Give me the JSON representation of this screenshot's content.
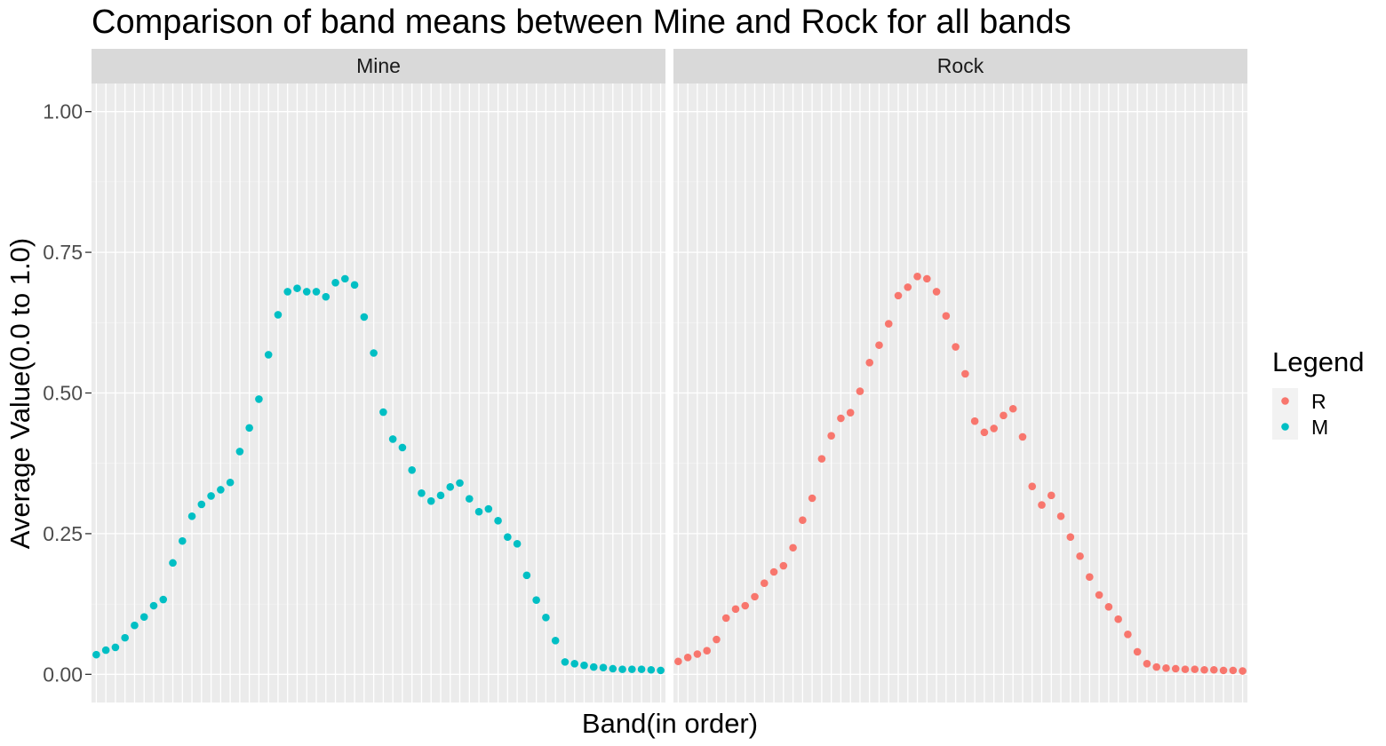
{
  "chart_data": {
    "type": "scatter",
    "title": "Comparison of band means between Mine and Rock for all bands",
    "xlabel": "Band(in order)",
    "ylabel": "Average Value(0.0 to 1.0)",
    "ylim": [
      0,
      1.0
    ],
    "y_ticks": [
      "0.00",
      "0.25",
      "0.50",
      "0.75",
      "1.00"
    ],
    "x_ticks_labeled": false,
    "grid": true,
    "legend": {
      "title": "Legend",
      "position": "right",
      "entries": [
        {
          "label": "R",
          "color": "#F8766D"
        },
        {
          "label": "M",
          "color": "#00BFC4"
        }
      ]
    },
    "facets": [
      {
        "label": "Mine",
        "series": "M",
        "color": "#00BFC4",
        "x": [
          1,
          2,
          3,
          4,
          5,
          6,
          7,
          8,
          9,
          10,
          11,
          12,
          13,
          14,
          15,
          16,
          17,
          18,
          19,
          20,
          21,
          22,
          23,
          24,
          25,
          26,
          27,
          28,
          29,
          30,
          31,
          32,
          33,
          34,
          35,
          36,
          37,
          38,
          39,
          40,
          41,
          42,
          43,
          44,
          45,
          46,
          47,
          48,
          49,
          50,
          51,
          52,
          53,
          54,
          55,
          56,
          57,
          58,
          59,
          60
        ],
        "values": [
          0.035,
          0.043,
          0.048,
          0.065,
          0.087,
          0.102,
          0.122,
          0.133,
          0.198,
          0.237,
          0.281,
          0.302,
          0.317,
          0.328,
          0.341,
          0.396,
          0.438,
          0.489,
          0.568,
          0.639,
          0.68,
          0.686,
          0.68,
          0.68,
          0.671,
          0.696,
          0.703,
          0.692,
          0.635,
          0.571,
          0.466,
          0.418,
          0.403,
          0.363,
          0.322,
          0.308,
          0.318,
          0.333,
          0.34,
          0.312,
          0.289,
          0.294,
          0.273,
          0.244,
          0.232,
          0.176,
          0.132,
          0.101,
          0.06,
          0.022,
          0.019,
          0.016,
          0.013,
          0.012,
          0.01,
          0.009,
          0.009,
          0.009,
          0.008,
          0.007
        ]
      },
      {
        "label": "Rock",
        "series": "R",
        "color": "#F8766D",
        "x": [
          1,
          2,
          3,
          4,
          5,
          6,
          7,
          8,
          9,
          10,
          11,
          12,
          13,
          14,
          15,
          16,
          17,
          18,
          19,
          20,
          21,
          22,
          23,
          24,
          25,
          26,
          27,
          28,
          29,
          30,
          31,
          32,
          33,
          34,
          35,
          36,
          37,
          38,
          39,
          40,
          41,
          42,
          43,
          44,
          45,
          46,
          47,
          48,
          49,
          50,
          51,
          52,
          53,
          54,
          55,
          56,
          57,
          58,
          59,
          60
        ],
        "values": [
          0.023,
          0.03,
          0.036,
          0.042,
          0.062,
          0.1,
          0.116,
          0.122,
          0.138,
          0.162,
          0.182,
          0.193,
          0.225,
          0.274,
          0.313,
          0.383,
          0.424,
          0.455,
          0.465,
          0.503,
          0.554,
          0.585,
          0.623,
          0.673,
          0.688,
          0.707,
          0.703,
          0.68,
          0.637,
          0.582,
          0.534,
          0.45,
          0.43,
          0.437,
          0.46,
          0.472,
          0.422,
          0.334,
          0.301,
          0.318,
          0.281,
          0.244,
          0.21,
          0.173,
          0.141,
          0.12,
          0.098,
          0.071,
          0.04,
          0.019,
          0.013,
          0.011,
          0.01,
          0.009,
          0.009,
          0.008,
          0.008,
          0.007,
          0.007,
          0.006
        ]
      }
    ]
  }
}
